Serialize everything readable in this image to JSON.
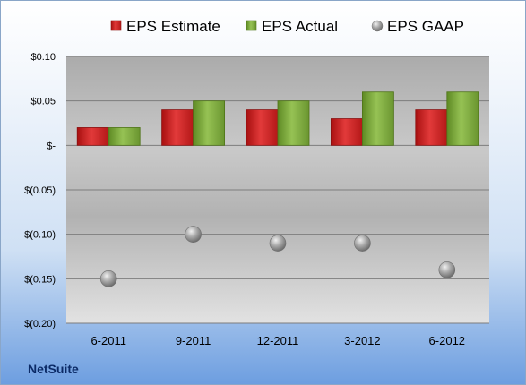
{
  "company": "NetSuite",
  "chart_data": {
    "type": "bar",
    "categories": [
      "6-2011",
      "9-2011",
      "12-2011",
      "3-2012",
      "6-2012"
    ],
    "series": [
      {
        "name": "EPS Estimate",
        "type": "bar",
        "color": "#d42a2a",
        "values": [
          0.02,
          0.04,
          0.04,
          0.03,
          0.04
        ]
      },
      {
        "name": "EPS Actual",
        "type": "bar",
        "color": "#7da83c",
        "values": [
          0.02,
          0.05,
          0.05,
          0.06,
          0.06
        ]
      },
      {
        "name": "EPS GAAP",
        "type": "scatter",
        "color": "#9a9a9a",
        "values": [
          -0.15,
          -0.1,
          -0.11,
          -0.11,
          -0.14
        ]
      }
    ],
    "ylim": [
      -0.2,
      0.1
    ],
    "yticks": [
      0.1,
      0.05,
      0,
      -0.05,
      -0.1,
      -0.15,
      -0.2
    ],
    "ytick_labels": [
      "$0.10",
      "$0.05",
      "$-",
      "$(0.05)",
      "$(0.10)",
      "$(0.15)",
      "$(0.20)"
    ],
    "legend_position": "top-center",
    "grid": true
  }
}
